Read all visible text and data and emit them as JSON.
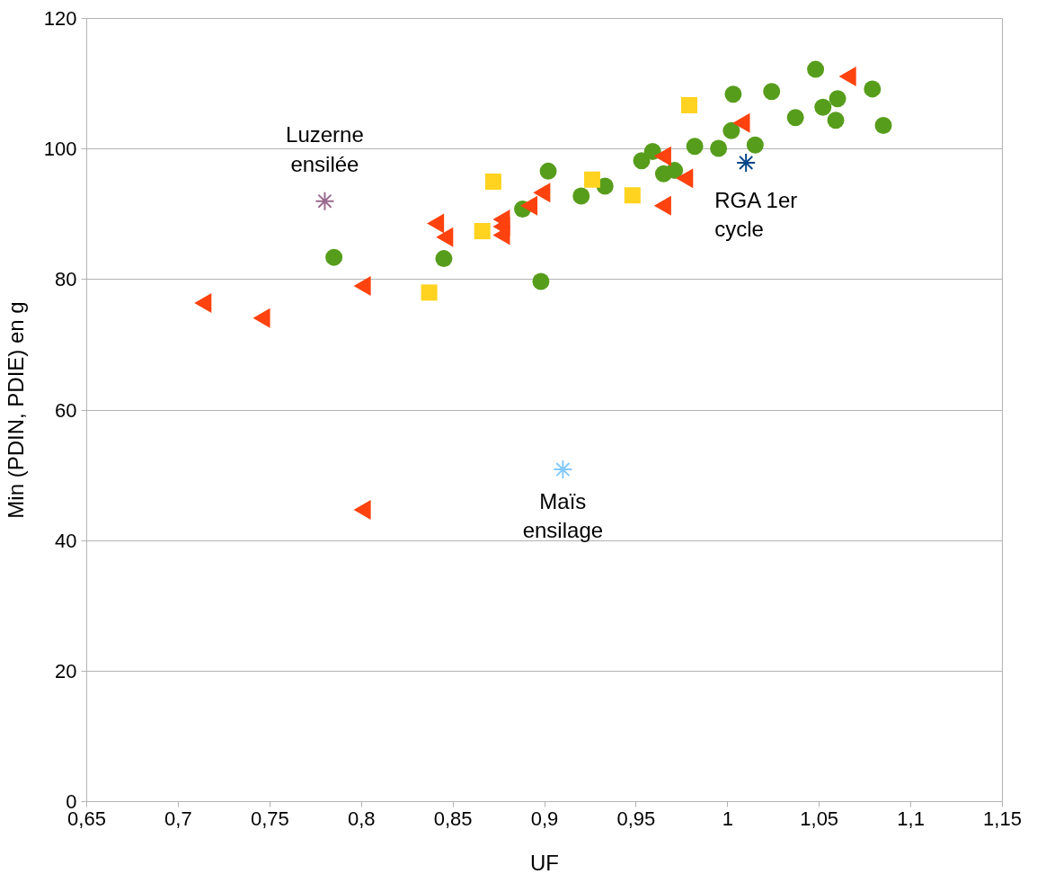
{
  "chart_data": {
    "type": "scatter",
    "xlabel": "UF",
    "ylabel": "Min (PDIN, PDIE) en g",
    "xlim": [
      0.65,
      1.15
    ],
    "ylim": [
      0,
      120
    ],
    "xticks": [
      {
        "value": 0.65,
        "label": "0,65"
      },
      {
        "value": 0.7,
        "label": "0,7"
      },
      {
        "value": 0.75,
        "label": "0,75"
      },
      {
        "value": 0.8,
        "label": "0,8"
      },
      {
        "value": 0.85,
        "label": "0,85"
      },
      {
        "value": 0.9,
        "label": "0,9"
      },
      {
        "value": 0.95,
        "label": "0,95"
      },
      {
        "value": 1,
        "label": "1"
      },
      {
        "value": 1.05,
        "label": "1,05"
      },
      {
        "value": 1.1,
        "label": "1,1"
      },
      {
        "value": 1.15,
        "label": "1,15"
      }
    ],
    "yticks": [
      0,
      20,
      40,
      60,
      80,
      100,
      120
    ],
    "grid": "y",
    "series": [
      {
        "color": "#579d1c",
        "marker": "circle",
        "x": [
          0.785,
          0.845,
          0.888,
          0.898,
          0.902,
          0.92,
          0.933,
          0.953,
          0.959,
          0.965,
          0.971,
          0.982,
          0.995,
          1.002,
          1.003,
          1.015,
          1.024,
          1.037,
          1.048,
          1.052,
          1.06,
          1.059,
          1.079,
          1.085
        ],
        "values": [
          83.4,
          83.2,
          90.8,
          79.7,
          96.6,
          92.8,
          94.3,
          98.2,
          99.6,
          96.2,
          96.7,
          100.4,
          100.1,
          102.8,
          108.4,
          100.6,
          108.8,
          104.8,
          112.2,
          106.4,
          107.7,
          104.4,
          109.2,
          103.6
        ]
      },
      {
        "color": "#ff420e",
        "marker": "triangle",
        "x": [
          0.715,
          0.747,
          0.802,
          0.802,
          0.842,
          0.847,
          0.878,
          0.878,
          0.878,
          0.893,
          0.9,
          0.966,
          0.966,
          0.978,
          1.009,
          1.067
        ],
        "values": [
          76.4,
          74.1,
          79.0,
          44.7,
          88.6,
          86.5,
          89.2,
          88.1,
          86.8,
          91.3,
          93.3,
          98.9,
          91.3,
          95.5,
          104.0,
          111.1
        ]
      },
      {
        "color": "#ffd320",
        "marker": "square",
        "x": [
          0.837,
          0.866,
          0.872,
          0.926,
          0.948,
          0.979
        ],
        "values": [
          78.0,
          87.4,
          95.0,
          95.3,
          92.9,
          106.7
        ]
      },
      {
        "color": "#9b6b8f",
        "marker": "cross",
        "x": [
          0.78
        ],
        "values": [
          92.0
        ]
      },
      {
        "color": "#83caff",
        "marker": "cross",
        "x": [
          0.91
        ],
        "values": [
          50.9
        ]
      },
      {
        "color": "#004586",
        "marker": "cross",
        "x": [
          1.01
        ],
        "values": [
          97.9
        ]
      }
    ],
    "annotations": [
      {
        "text": "Luzerne\nensilée",
        "x": 0.78,
        "y": 92.0
      },
      {
        "text": "Maïs\nensilage",
        "x": 0.91,
        "y": 50.9
      },
      {
        "text": "RGA 1er\ncycle",
        "x": 1.01,
        "y": 97.9
      }
    ]
  }
}
